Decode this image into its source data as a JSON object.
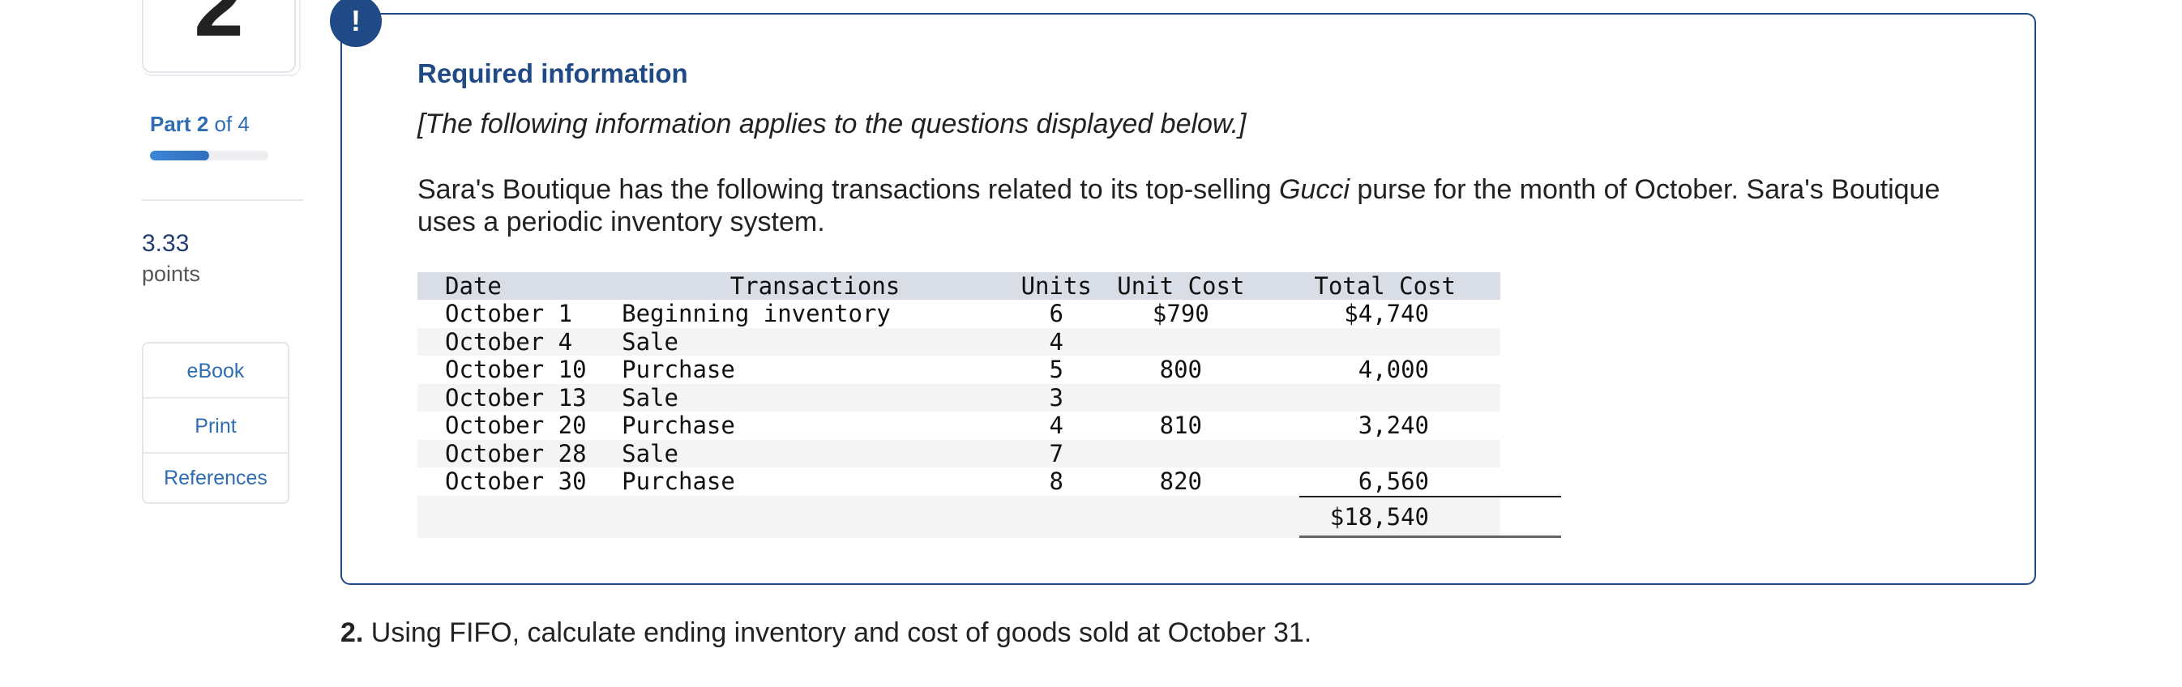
{
  "sidebar": {
    "question_number": "2",
    "part_prefix": "Part",
    "part_current": "2",
    "part_of": "of 4",
    "part_progress": 0.5,
    "points_value": "3.33",
    "points_label": "points",
    "links": [
      "eBook",
      "Print",
      "References"
    ]
  },
  "info": {
    "badge": "!",
    "title": "Required information",
    "note": "[The following information applies to the questions displayed below.]",
    "para_before": "Sara's Boutique has the following transactions related to its top-selling ",
    "para_emph": "Gucci",
    "para_after": " purse for the month of October. Sara's Boutique uses a periodic inventory system."
  },
  "table": {
    "headers": [
      "Date",
      "Transactions",
      "Units",
      "Unit Cost",
      "Total Cost"
    ],
    "rows": [
      [
        "October 1",
        "Beginning inventory",
        "6",
        "$790",
        "$4,740"
      ],
      [
        "October 4",
        "Sale",
        "4",
        "",
        ""
      ],
      [
        "October 10",
        "Purchase",
        "5",
        "800",
        "4,000"
      ],
      [
        "October 13",
        "Sale",
        "3",
        "",
        ""
      ],
      [
        "October 20",
        "Purchase",
        "4",
        "810",
        "3,240"
      ],
      [
        "October 28",
        "Sale",
        "7",
        "",
        ""
      ],
      [
        "October 30",
        "Purchase",
        "8",
        "820",
        "6,560"
      ]
    ],
    "grand_total": "$18,540"
  },
  "question": {
    "number": "2.",
    "text": " Using FIFO, calculate ending inventory and cost of goods sold at October 31."
  },
  "colors": {
    "accent": "#1f4a85",
    "link": "#2e6db4",
    "table_header_bg": "#d9dde6"
  }
}
